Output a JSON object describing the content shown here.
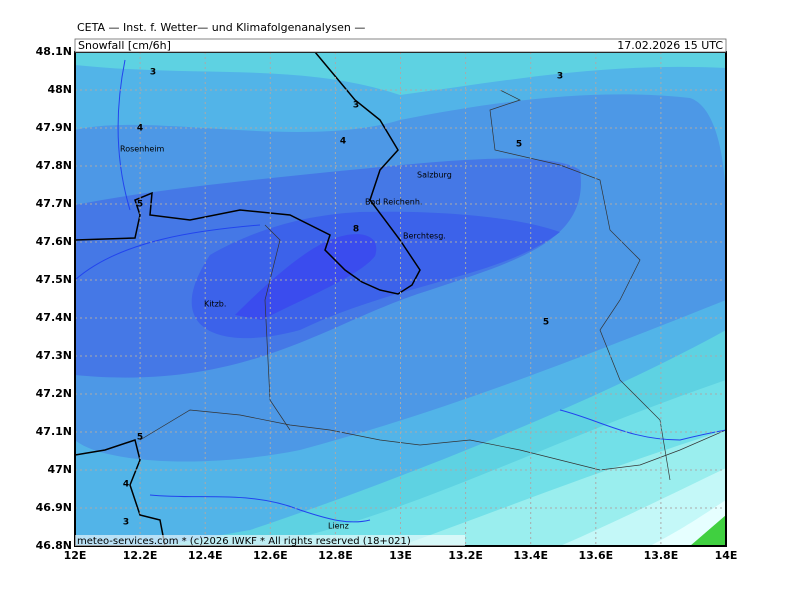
{
  "header": {
    "institute": "CETA — Inst. f. Wetter— und Klimafolgenanalysen —",
    "title": "Snowfall [cm/6h]",
    "valid_time": "17.02.2026 15 UTC"
  },
  "footer": "meteo-services.com * (c)2026 IWKF * All rights reserved (18+021)",
  "lon_ticks": [
    {
      "value": 12,
      "label": "12E"
    },
    {
      "value": 12.2,
      "label": "12.2E"
    },
    {
      "value": 12.4,
      "label": "12.4E"
    },
    {
      "value": 12.6,
      "label": "12.6E"
    },
    {
      "value": 12.8,
      "label": "12.8E"
    },
    {
      "value": 13,
      "label": "13E"
    },
    {
      "value": 13.2,
      "label": "13.2E"
    },
    {
      "value": 13.4,
      "label": "13.4E"
    },
    {
      "value": 13.6,
      "label": "13.6E"
    },
    {
      "value": 13.8,
      "label": "13.8E"
    },
    {
      "value": 14,
      "label": "14E"
    }
  ],
  "lat_ticks": [
    {
      "value": 48.1,
      "label": "48.1N"
    },
    {
      "value": 48,
      "label": "48N"
    },
    {
      "value": 47.9,
      "label": "47.9N"
    },
    {
      "value": 47.8,
      "label": "47.8N"
    },
    {
      "value": 47.7,
      "label": "47.7N"
    },
    {
      "value": 47.6,
      "label": "47.6N"
    },
    {
      "value": 47.5,
      "label": "47.5N"
    },
    {
      "value": 47.4,
      "label": "47.4N"
    },
    {
      "value": 47.3,
      "label": "47.3N"
    },
    {
      "value": 47.2,
      "label": "47.2N"
    },
    {
      "value": 47.1,
      "label": "47.1N"
    },
    {
      "value": 47,
      "label": "47N"
    },
    {
      "value": 46.9,
      "label": "46.9N"
    },
    {
      "value": 46.8,
      "label": "46.8N"
    }
  ],
  "places": [
    "Rosenheim",
    "Salzburg",
    "Bad Reichenh.",
    "Berchtesg.",
    "Kitzb.",
    "Lienz"
  ],
  "contour_labels": [
    "3",
    "3",
    "3",
    "4",
    "4",
    "5",
    "5",
    "8",
    "5",
    "5",
    "4",
    "3"
  ]
}
